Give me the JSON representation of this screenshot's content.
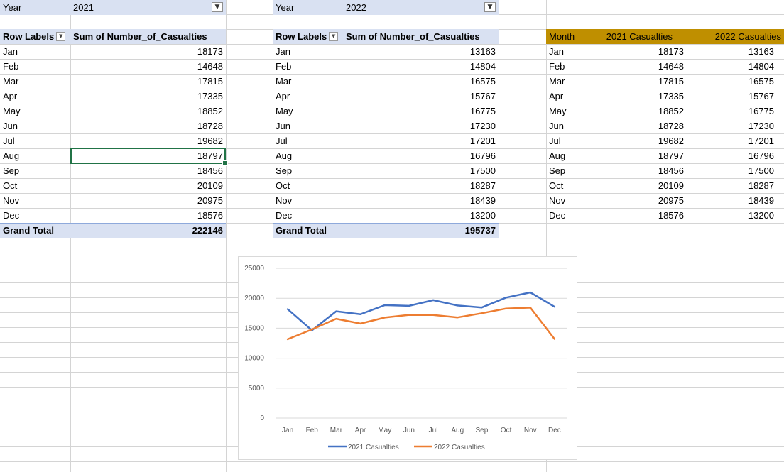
{
  "pivot_2021": {
    "filter_label": "Year",
    "filter_value": "2021",
    "header_row_labels": "Row Labels",
    "header_sum": "Sum of Number_of_Casualties",
    "rows": [
      {
        "month": "Jan",
        "value": "18173"
      },
      {
        "month": "Feb",
        "value": "14648"
      },
      {
        "month": "Mar",
        "value": "17815"
      },
      {
        "month": "Apr",
        "value": "17335"
      },
      {
        "month": "May",
        "value": "18852"
      },
      {
        "month": "Jun",
        "value": "18728"
      },
      {
        "month": "Jul",
        "value": "19682"
      },
      {
        "month": "Aug",
        "value": "18797"
      },
      {
        "month": "Sep",
        "value": "18456"
      },
      {
        "month": "Oct",
        "value": "20109"
      },
      {
        "month": "Nov",
        "value": "20975"
      },
      {
        "month": "Dec",
        "value": "18576"
      }
    ],
    "grand_total_label": "Grand Total",
    "grand_total_value": "222146"
  },
  "pivot_2022": {
    "filter_label": "Year",
    "filter_value": "2022",
    "header_row_labels": "Row Labels",
    "header_sum": "Sum of Number_of_Casualties",
    "rows": [
      {
        "month": "Jan",
        "value": "13163"
      },
      {
        "month": "Feb",
        "value": "14804"
      },
      {
        "month": "Mar",
        "value": "16575"
      },
      {
        "month": "Apr",
        "value": "15767"
      },
      {
        "month": "May",
        "value": "16775"
      },
      {
        "month": "Jun",
        "value": "17230"
      },
      {
        "month": "Jul",
        "value": "17201"
      },
      {
        "month": "Aug",
        "value": "16796"
      },
      {
        "month": "Sep",
        "value": "17500"
      },
      {
        "month": "Oct",
        "value": "18287"
      },
      {
        "month": "Nov",
        "value": "18439"
      },
      {
        "month": "Dec",
        "value": "13200"
      }
    ],
    "grand_total_label": "Grand Total",
    "grand_total_value": "195737"
  },
  "summary_table": {
    "headers": [
      "Month",
      "2021 Casualties",
      "2022 Casualties"
    ],
    "rows": [
      [
        "Jan",
        "18173",
        "13163"
      ],
      [
        "Feb",
        "14648",
        "14804"
      ],
      [
        "Mar",
        "17815",
        "16575"
      ],
      [
        "Apr",
        "17335",
        "15767"
      ],
      [
        "May",
        "18852",
        "16775"
      ],
      [
        "Jun",
        "18728",
        "17230"
      ],
      [
        "Jul",
        "19682",
        "17201"
      ],
      [
        "Aug",
        "18797",
        "16796"
      ],
      [
        "Sep",
        "18456",
        "17500"
      ],
      [
        "Oct",
        "20109",
        "18287"
      ],
      [
        "Nov",
        "20975",
        "18439"
      ],
      [
        "Dec",
        "18576",
        "13200"
      ]
    ]
  },
  "icons": {
    "filter": "filter-icon",
    "dropdown": "chevron-down-icon"
  },
  "colors": {
    "pivot_header_bg": "#d9e1f2",
    "summary_header_bg": "#bf8f00",
    "selection_border": "#217346",
    "series_2021": "#4472c4",
    "series_2022": "#ed7d31",
    "gridline": "#d4d4d4"
  },
  "chart_data": {
    "type": "line",
    "categories": [
      "Jan",
      "Feb",
      "Mar",
      "Apr",
      "May",
      "Jun",
      "Jul",
      "Aug",
      "Sep",
      "Oct",
      "Nov",
      "Dec"
    ],
    "series": [
      {
        "name": "2021 Casualties",
        "values": [
          18173,
          14648,
          17815,
          17335,
          18852,
          18728,
          19682,
          18797,
          18456,
          20109,
          20975,
          18576
        ]
      },
      {
        "name": "2022 Casualties",
        "values": [
          13163,
          14804,
          16575,
          15767,
          16775,
          17230,
          17201,
          16796,
          17500,
          18287,
          18439,
          13200
        ]
      }
    ],
    "y_ticks": [
      "0",
      "5000",
      "10000",
      "15000",
      "20000",
      "25000"
    ],
    "ylim": [
      0,
      25000
    ],
    "grid": true,
    "legend": "bottom"
  }
}
